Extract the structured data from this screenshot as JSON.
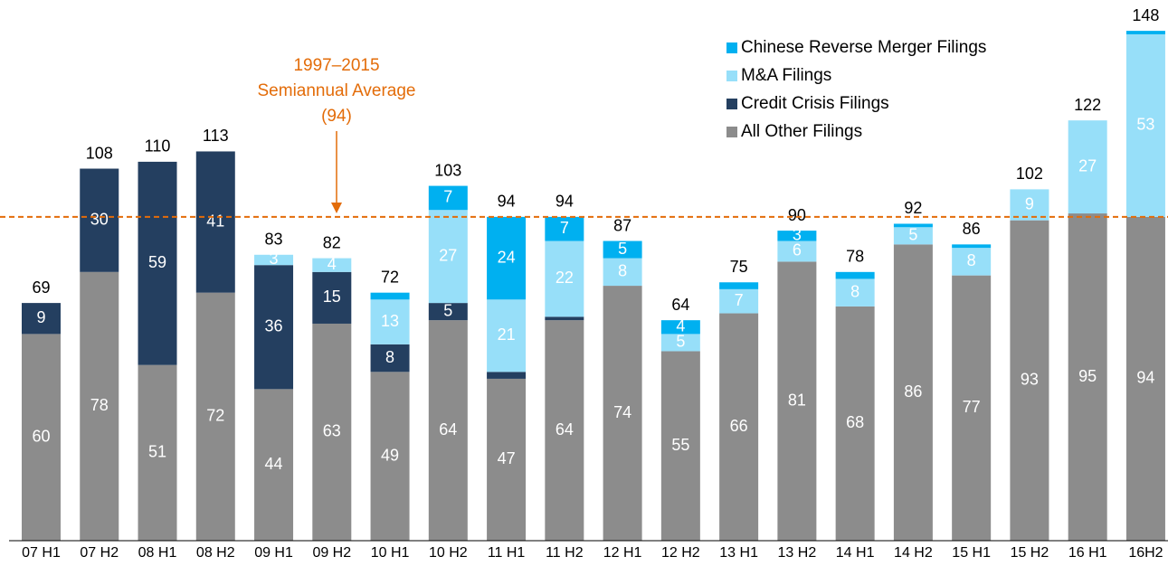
{
  "chart_data": {
    "type": "stacked_bar",
    "categories": [
      "07 H1",
      "07 H2",
      "08 H1",
      "08 H2",
      "09 H1",
      "09 H2",
      "10 H1",
      "10 H2",
      "11 H1",
      "11 H2",
      "12 H1",
      "12 H2",
      "13 H1",
      "13 H2",
      "14 H1",
      "14 H2",
      "15 H1",
      "15 H2",
      "16 H1",
      "16H2"
    ],
    "series": [
      {
        "name": "All Other Filings",
        "color": "#8c8c8c",
        "values": [
          60,
          78,
          51,
          72,
          44,
          63,
          49,
          64,
          47,
          64,
          74,
          55,
          66,
          81,
          68,
          86,
          77,
          93,
          95,
          94
        ]
      },
      {
        "name": "Credit Crisis Filings",
        "color": "#243f60",
        "values": [
          9,
          30,
          59,
          41,
          36,
          15,
          8,
          5,
          2,
          1,
          0,
          0,
          0,
          0,
          0,
          0,
          0,
          0,
          0,
          0
        ]
      },
      {
        "name": "M&A Filings",
        "color": "#97dff9",
        "values": [
          0,
          0,
          0,
          0,
          3,
          4,
          13,
          27,
          21,
          22,
          8,
          5,
          7,
          6,
          8,
          5,
          8,
          9,
          27,
          53
        ]
      },
      {
        "name": "Chinese Reverse Merger Filings",
        "color": "#00b0f0",
        "values": [
          0,
          0,
          0,
          0,
          0,
          0,
          2,
          7,
          24,
          7,
          5,
          4,
          2,
          3,
          2,
          1,
          1,
          0,
          0,
          1
        ]
      }
    ],
    "totals": [
      69,
      108,
      110,
      113,
      83,
      82,
      72,
      103,
      94,
      94,
      87,
      64,
      75,
      90,
      78,
      92,
      86,
      102,
      122,
      148
    ],
    "average": {
      "value": 94,
      "color": "#e36c09",
      "label": [
        "1997–2015",
        "Semiannual Average",
        "(94)"
      ]
    },
    "ylim": [
      0,
      150
    ]
  }
}
